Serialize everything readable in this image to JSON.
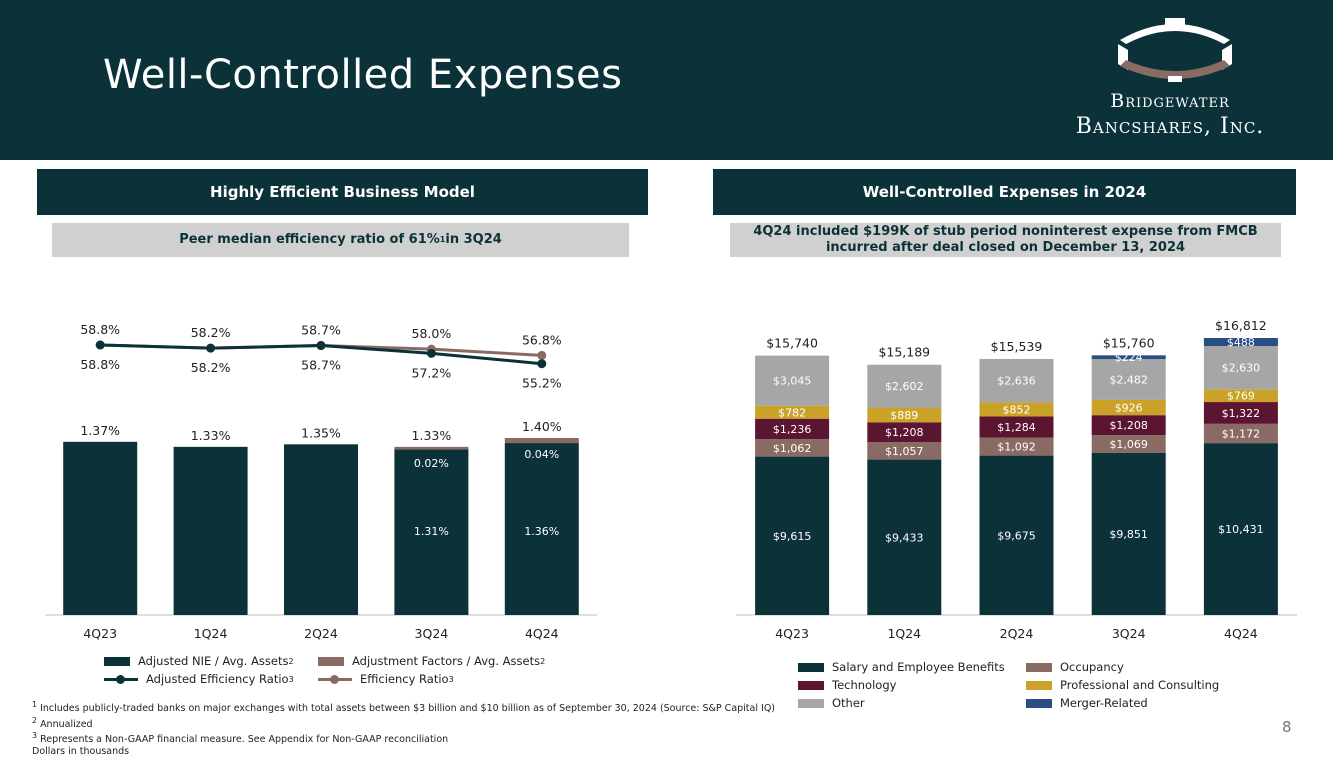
{
  "title": "Well-Controlled Expenses",
  "logo": {
    "line1": "Bridgewater",
    "line2": "Bancshares, Inc."
  },
  "left_panel": {
    "header": "Highly Efficient Business Model",
    "subheader_main": "Peer median efficiency ratio of 61%",
    "subheader_sup": "1",
    "subheader_tail": " in 3Q24",
    "legend": [
      {
        "label": "Adjusted NIE / Avg. Assets",
        "sup": "2",
        "color": "#0c3239",
        "kind": "bar"
      },
      {
        "label": "Adjustment Factors / Avg. Assets",
        "sup": "2",
        "color": "#8a6b63",
        "kind": "bar"
      },
      {
        "label": "Adjusted Efficiency Ratio",
        "sup": "3",
        "color": "#0c3239",
        "kind": "line"
      },
      {
        "label": "Efficiency Ratio",
        "sup": "3",
        "color": "#8a6b63",
        "kind": "line"
      }
    ]
  },
  "right_panel": {
    "header": "Well-Controlled Expenses in 2024",
    "subheader_line1": "4Q24 included $199K of stub period noninterest expense from FMCB",
    "subheader_line2": "incurred after deal closed on December 13, 2024",
    "legend": [
      {
        "label": "Salary and Employee Benefits",
        "color": "#0c3239"
      },
      {
        "label": "Occupancy",
        "color": "#8a6b63"
      },
      {
        "label": "Technology",
        "color": "#5c1530"
      },
      {
        "label": "Professional and Consulting",
        "color": "#c9a227"
      },
      {
        "label": "Other",
        "color": "#a6a6a6"
      },
      {
        "label": "Merger-Related",
        "color": "#2a4d82"
      }
    ]
  },
  "chart_data": [
    {
      "type": "bar",
      "title": "Highly Efficient Business Model",
      "categories": [
        "4Q23",
        "1Q24",
        "2Q24",
        "3Q24",
        "4Q24"
      ],
      "bar_series": [
        {
          "name": "Adjusted NIE / Avg. Assets",
          "values": [
            1.37,
            1.33,
            1.35,
            1.31,
            1.36
          ],
          "labels": [
            "",
            "",
            "",
            "1.31%",
            "1.36%"
          ]
        },
        {
          "name": "Adjustment Factors / Avg. Assets",
          "values": [
            0,
            0,
            0,
            0.02,
            0.04
          ],
          "labels": [
            "",
            "",
            "",
            "0.02%",
            "0.04%"
          ]
        }
      ],
      "bar_totals": [
        "1.37%",
        "1.33%",
        "1.35%",
        "1.33%",
        "1.40%"
      ],
      "line_series": [
        {
          "name": "Efficiency Ratio",
          "values": [
            58.8,
            58.2,
            58.7,
            58.0,
            56.8
          ],
          "labels": [
            "58.8%",
            "58.2%",
            "58.7%",
            "58.0%",
            "56.8%"
          ]
        },
        {
          "name": "Adjusted Efficiency Ratio",
          "values": [
            58.8,
            58.2,
            58.7,
            57.2,
            55.2
          ],
          "labels": [
            "58.8%",
            "58.2%",
            "58.7%",
            "57.2%",
            "55.2%"
          ]
        }
      ],
      "bar_ylim": [
        0,
        2.5
      ],
      "line_ylim": [
        20,
        70
      ]
    },
    {
      "type": "bar",
      "stacked": true,
      "title": "Well-Controlled Expenses in 2024",
      "categories": [
        "4Q23",
        "1Q24",
        "2Q24",
        "3Q24",
        "4Q24"
      ],
      "series": [
        {
          "name": "Salary and Employee Benefits",
          "values": [
            9615,
            9433,
            9675,
            9851,
            10431
          ],
          "labels": [
            "$9,615",
            "$9,433",
            "$9,675",
            "$9,851",
            "$10,431"
          ]
        },
        {
          "name": "Occupancy",
          "values": [
            1062,
            1057,
            1092,
            1069,
            1172
          ],
          "labels": [
            "$1,062",
            "$1,057",
            "$1,092",
            "$1,069",
            "$1,172"
          ]
        },
        {
          "name": "Technology",
          "values": [
            1236,
            1208,
            1284,
            1208,
            1322
          ],
          "labels": [
            "$1,236",
            "$1,208",
            "$1,284",
            "$1,208",
            "$1,322"
          ]
        },
        {
          "name": "Professional and Consulting",
          "values": [
            782,
            889,
            852,
            926,
            769
          ],
          "labels": [
            "$782",
            "$889",
            "$852",
            "$926",
            "$769"
          ]
        },
        {
          "name": "Other",
          "values": [
            3045,
            2602,
            2636,
            2482,
            2630
          ],
          "labels": [
            "$3,045",
            "$2,602",
            "$2,636",
            "$2,482",
            "$2,630"
          ]
        },
        {
          "name": "Merger-Related",
          "values": [
            0,
            0,
            0,
            224,
            488
          ],
          "labels": [
            "",
            "",
            "",
            "$224",
            "$488"
          ]
        }
      ],
      "totals": [
        "$15,740",
        "$15,189",
        "$15,539",
        "$15,760",
        "$16,812"
      ],
      "ylim": [
        0,
        17000
      ]
    }
  ],
  "footnotes": [
    "Includes publicly-traded banks on major exchanges with total assets between $3 billion and $10 billion as of September 30, 2024 (Source: S&P Capital IQ)",
    "Annualized",
    "Represents a Non-GAAP financial measure. See Appendix for Non-GAAP reconciliation",
    "Dollars in thousands"
  ],
  "footnote_marks": [
    "1",
    "2",
    "3",
    ""
  ],
  "page_number": "8"
}
